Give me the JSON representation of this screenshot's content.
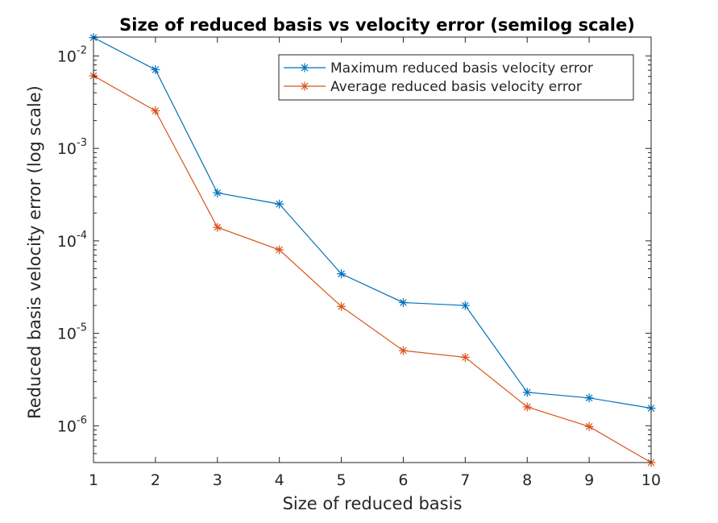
{
  "chart_data": {
    "type": "line",
    "title": "Size of reduced basis vs velocity error (semilog scale)",
    "xlabel": "Size of reduced basis",
    "ylabel": "Reduced basis velocity error (log scale)",
    "x": [
      1,
      2,
      3,
      4,
      5,
      6,
      7,
      8,
      9,
      10
    ],
    "xlim": [
      1,
      10
    ],
    "ylim": [
      4e-07,
      0.016
    ],
    "yscale": "log",
    "x_ticks": [
      "1",
      "2",
      "3",
      "4",
      "5",
      "6",
      "7",
      "8",
      "9",
      "10"
    ],
    "y_ticks": [
      {
        "base": "10",
        "exp": "-6",
        "value": 1e-06
      },
      {
        "base": "10",
        "exp": "-5",
        "value": 1e-05
      },
      {
        "base": "10",
        "exp": "-4",
        "value": 0.0001
      },
      {
        "base": "10",
        "exp": "-3",
        "value": 0.001
      },
      {
        "base": "10",
        "exp": "-2",
        "value": 0.01
      }
    ],
    "grid": false,
    "legend_position": "top-right",
    "series": [
      {
        "name": "Maximum reduced basis velocity error",
        "color": "#0072BD",
        "marker": "asterisk",
        "values": [
          0.0158,
          0.0071,
          0.00033,
          0.00025,
          4.4e-05,
          2.15e-05,
          2e-05,
          2.3e-06,
          2e-06,
          1.55e-06
        ]
      },
      {
        "name": "Average reduced basis velocity error",
        "color": "#D95319",
        "marker": "asterisk",
        "values": [
          0.0061,
          0.00255,
          0.00014,
          8e-05,
          1.95e-05,
          6.5e-06,
          5.5e-06,
          1.6e-06,
          9.8e-07,
          4e-07
        ]
      }
    ]
  }
}
